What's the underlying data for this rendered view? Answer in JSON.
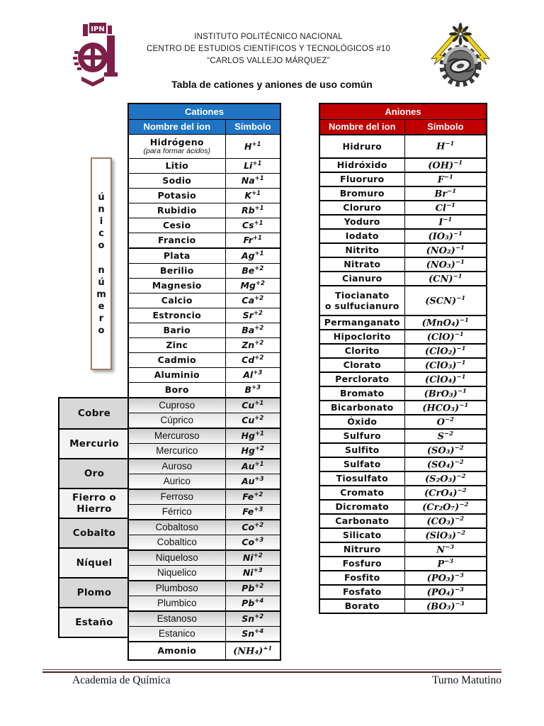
{
  "header": {
    "institute": "INSTITUTO POLITÉCNICO NACIONAL",
    "center": "CENTRO DE ESTUDIOS CIENTÍFICOS Y TECNOLÓGICOS #10",
    "school": "“CARLOS VALLEJO MÁRQUEZ”",
    "left_logo": "ipn-logo",
    "right_logo": "cecyt-gear-logo",
    "logo_color": "#7d2049",
    "bolt_color": "#f2d410"
  },
  "title": "Tabla de cationes y aniones de uso común",
  "side_note": {
    "words": [
      "único",
      "número"
    ]
  },
  "cations": {
    "title": "Cationes",
    "col_name": "Nombre del ion",
    "col_symbol": "Símbolo",
    "header_color": "#1f74c4",
    "rows": [
      {
        "name": "Hidrógeno",
        "note": "(para formar ácidos)",
        "symbol": "H",
        "charge": "+1",
        "tall": true
      },
      {
        "name": "Litio",
        "symbol": "Li",
        "charge": "+1"
      },
      {
        "name": "Sodio",
        "symbol": "Na",
        "charge": "+1"
      },
      {
        "name": "Potasio",
        "symbol": "K",
        "charge": "+1"
      },
      {
        "name": "Rubidio",
        "symbol": "Rb",
        "charge": "+1"
      },
      {
        "name": "Cesio",
        "symbol": "Cs",
        "charge": "+1"
      },
      {
        "name": "Francio",
        "symbol": "Fr",
        "charge": "+1"
      },
      {
        "name": "Plata",
        "symbol": "Ag",
        "charge": "+1",
        "thick": true
      },
      {
        "name": "Berilio",
        "symbol": "Be",
        "charge": "+2"
      },
      {
        "name": "Magnesio",
        "symbol": "Mg",
        "charge": "+2"
      },
      {
        "name": "Calcio",
        "symbol": "Ca",
        "charge": "+2"
      },
      {
        "name": "Estroncio",
        "symbol": "Sr",
        "charge": "+2"
      },
      {
        "name": "Bario",
        "symbol": "Ba",
        "charge": "+2"
      },
      {
        "name": "Zinc",
        "symbol": "Zn",
        "charge": "+2"
      },
      {
        "name": "Cadmio",
        "symbol": "Cd",
        "charge": "+2"
      },
      {
        "name": "Aluminio",
        "symbol": "Al",
        "charge": "+3"
      },
      {
        "name": "Boro",
        "symbol": "B",
        "charge": "+3"
      }
    ],
    "groups": [
      {
        "label": "Cobre",
        "rows": [
          {
            "name": "Cuproso",
            "symbol": "Cu",
            "charge": "+1"
          },
          {
            "name": "Cúprico",
            "symbol": "Cu",
            "charge": "+2"
          }
        ]
      },
      {
        "label": "Mercurio",
        "rows": [
          {
            "name": "Mercuroso",
            "symbol": "Hg",
            "charge": "+1"
          },
          {
            "name": "Mercurico",
            "symbol": "Hg",
            "charge": "+2"
          }
        ]
      },
      {
        "label": "Oro",
        "rows": [
          {
            "name": "Auroso",
            "symbol": "Au",
            "charge": "+1"
          },
          {
            "name": "Aurico",
            "symbol": "Au",
            "charge": "+3"
          }
        ]
      },
      {
        "label": "Fierro o Hierro",
        "rows": [
          {
            "name": "Ferroso",
            "symbol": "Fe",
            "charge": "+2"
          },
          {
            "name": "Férrico",
            "symbol": "Fe",
            "charge": "+3"
          }
        ]
      },
      {
        "label": "Cobalto",
        "rows": [
          {
            "name": "Cobaltoso",
            "symbol": "Co",
            "charge": "+2"
          },
          {
            "name": "Cobaltico",
            "symbol": "Co",
            "charge": "+3"
          }
        ]
      },
      {
        "label": "Níquel",
        "rows": [
          {
            "name": "Niqueloso",
            "symbol": "Ni",
            "charge": "+2"
          },
          {
            "name": "Niquelico",
            "symbol": "Ni",
            "charge": "+3"
          }
        ]
      },
      {
        "label": "Plomo",
        "rows": [
          {
            "name": "Plumboso",
            "symbol": "Pb",
            "charge": "+2"
          },
          {
            "name": "Plumbico",
            "symbol": "Pb",
            "charge": "+4"
          }
        ]
      },
      {
        "label": "Estaño",
        "rows": [
          {
            "name": "Estanoso",
            "symbol": "Sn",
            "charge": "+2"
          },
          {
            "name": "Estanico",
            "symbol": "Sn",
            "charge": "+4"
          }
        ]
      }
    ],
    "extra": {
      "name": "Amonio",
      "symbol": "(NH₄)",
      "charge": "+1"
    }
  },
  "anions": {
    "title": "Aniones",
    "col_name": "Nombre del ion",
    "col_symbol": "Símbolo",
    "header_color": "#c00000",
    "rows": [
      {
        "name": "Hidruro",
        "symbol": "H",
        "charge": "−1",
        "tall": true
      },
      {
        "name": "Hidróxido",
        "symbol": "(OH)",
        "charge": "−1"
      },
      {
        "name": "Fluoruro",
        "symbol": "F",
        "charge": "−1"
      },
      {
        "name": "Bromuro",
        "symbol": "Br",
        "charge": "−1"
      },
      {
        "name": "Cloruro",
        "symbol": "Cl",
        "charge": "−1"
      },
      {
        "name": "Yoduro",
        "symbol": "I",
        "charge": "−1"
      },
      {
        "name": "Iodato",
        "symbol": "(IO₃)",
        "charge": "−1"
      },
      {
        "name": "Nitrito",
        "symbol": "(NO₂)",
        "charge": "−1"
      },
      {
        "name": "Nitrato",
        "symbol": "(NO₃)",
        "charge": "−1"
      },
      {
        "name": "Cianuro",
        "symbol": "(CN)",
        "charge": "−1"
      },
      {
        "name_lines": [
          "Tiocianato",
          "o sulfucianuro"
        ],
        "symbol": "(SCN)",
        "charge": "−1"
      },
      {
        "name": "Permanganato",
        "symbol": "(MnO₄)",
        "charge": "−1"
      },
      {
        "name": "Hipoclorito",
        "symbol": "(ClO)",
        "charge": "−1"
      },
      {
        "name": "Clorito",
        "symbol": "(ClO₂)",
        "charge": "−1"
      },
      {
        "name": "Clorato",
        "symbol": "(ClO₃)",
        "charge": "−1"
      },
      {
        "name": "Perclorato",
        "symbol": "(ClO₄)",
        "charge": "−1"
      },
      {
        "name": "Bromato",
        "symbol": "(BrO₃)",
        "charge": "−1"
      },
      {
        "name": "Bicarbonato",
        "symbol": "(HCO₃)",
        "charge": "−1"
      },
      {
        "name": "Óxido",
        "symbol": "O",
        "charge": "−2"
      },
      {
        "name": "Sulfuro",
        "symbol": "S",
        "charge": "−2"
      },
      {
        "name": "Sulfito",
        "symbol": "(SO₃)",
        "charge": "−2"
      },
      {
        "name": "Sulfato",
        "symbol": "(SO₄)",
        "charge": "−2"
      },
      {
        "name": "Tiosulfato",
        "symbol": "(S₂O₃)",
        "charge": "−2"
      },
      {
        "name": "Cromato",
        "symbol": "(CrO₄)",
        "charge": "−2"
      },
      {
        "name": "Dicromato",
        "symbol": "(Cr₂O₇)",
        "charge": "−2"
      },
      {
        "name": "Carbonato",
        "symbol": "(CO₃)",
        "charge": "−2"
      },
      {
        "name": "Silicato",
        "symbol": "(SiO₃)",
        "charge": "−2"
      },
      {
        "name": "Nitruro",
        "symbol": "N",
        "charge": "−3"
      },
      {
        "name": "Fosfuro",
        "symbol": "P",
        "charge": "−3"
      },
      {
        "name": "Fosfito",
        "symbol": "(PO₃)",
        "charge": "−3"
      },
      {
        "name": "Fosfato",
        "symbol": "(PO₄)",
        "charge": "−3"
      },
      {
        "name": "Borato",
        "symbol": "(BO₃)",
        "charge": "−3"
      }
    ]
  },
  "footer": {
    "left": "Academia de Química",
    "right": "Turno Matutino"
  }
}
